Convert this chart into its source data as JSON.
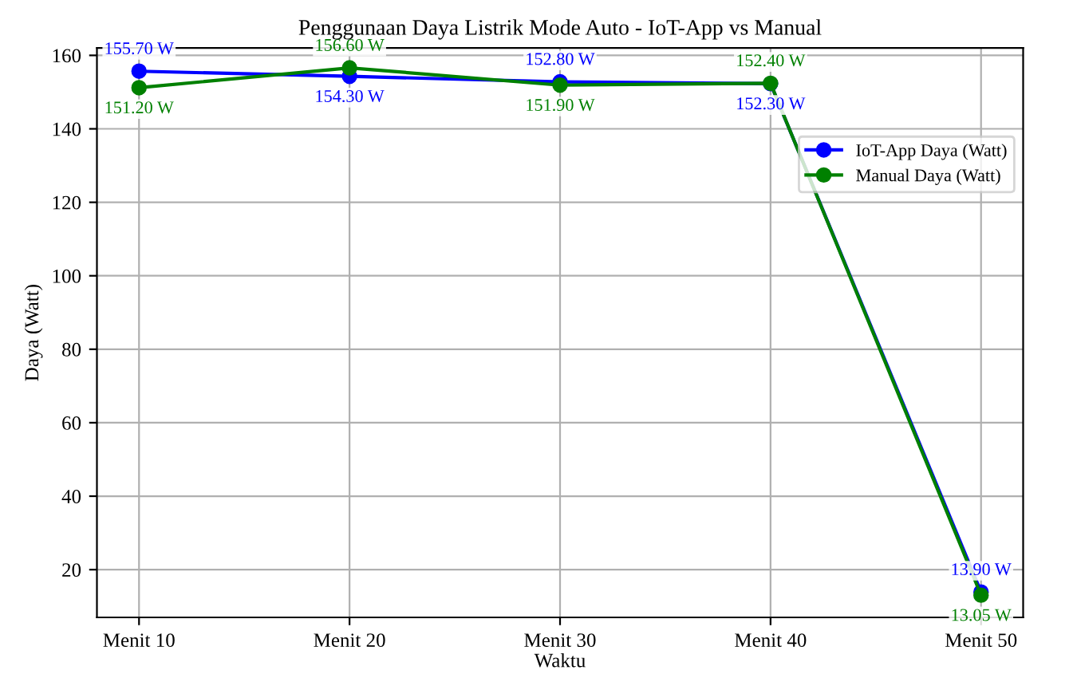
{
  "chart_data": {
    "type": "line",
    "title": "Penggunaan Daya Listrik Mode Auto - IoT-App vs Manual",
    "xlabel": "Waktu",
    "ylabel": "Daya (Watt)",
    "categories": [
      "Menit 10",
      "Menit 20",
      "Menit 30",
      "Menit 40",
      "Menit 50"
    ],
    "series": [
      {
        "name": "IoT-App Daya (Watt)",
        "color": "#0000ff",
        "values": [
          155.7,
          154.3,
          152.8,
          152.3,
          13.9
        ],
        "value_labels": [
          "155.70 W",
          "154.30 W",
          "152.80 W",
          "152.30 W",
          "13.90 W"
        ]
      },
      {
        "name": "Manual Daya (Watt)",
        "color": "#008000",
        "values": [
          151.2,
          156.6,
          151.9,
          152.4,
          13.05
        ],
        "value_labels": [
          "151.20 W",
          "156.60 W",
          "151.90 W",
          "152.40 W",
          "13.05 W"
        ]
      }
    ],
    "ylim": [
      7,
      162
    ],
    "yticks": [
      20,
      40,
      60,
      80,
      100,
      120,
      140,
      160
    ],
    "grid": true,
    "legend": "top right",
    "marker": "circle",
    "line_style": "solid"
  }
}
